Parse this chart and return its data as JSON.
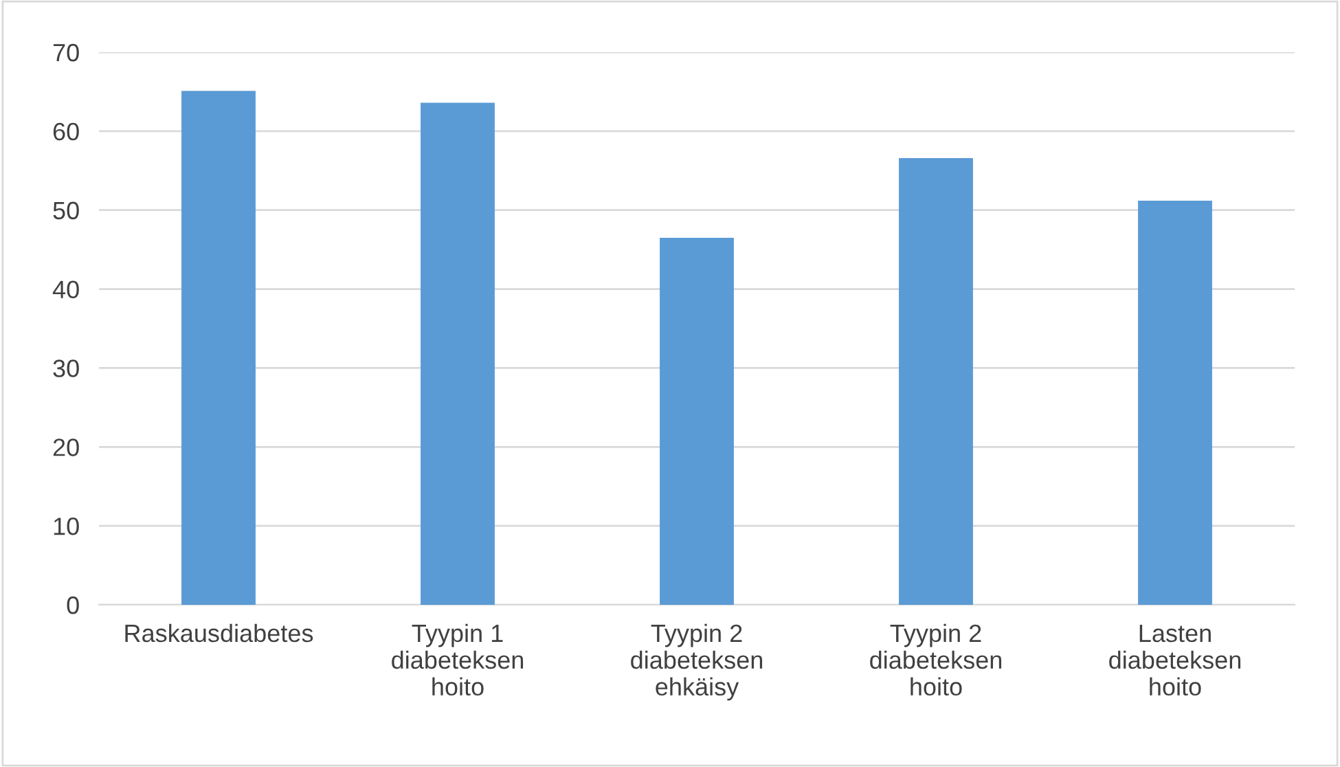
{
  "chart_data": {
    "type": "bar",
    "categories": [
      "Raskausdiabetes",
      "Tyypin 1\ndiabeteksen\nhoito",
      "Tyypin 2\ndiabeteksen\nehkäisy",
      "Tyypin 2\ndiabeteksen\nhoito",
      "Lasten\ndiabeteksen\nhoito"
    ],
    "values": [
      65.1,
      63.6,
      46.5,
      56.6,
      51.2
    ],
    "color": "#5b9bd5",
    "ylim": [
      0,
      70
    ],
    "yticks": [
      0,
      10,
      20,
      30,
      40,
      50,
      60,
      70
    ],
    "grid": "y",
    "legend": false
  }
}
